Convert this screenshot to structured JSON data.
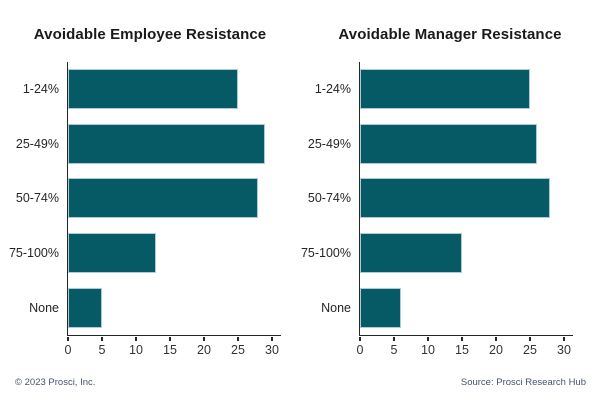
{
  "footer": {
    "copyright": "© 2023 Prosci, Inc.",
    "source": "Source: Prosci Research Hub"
  },
  "colors": {
    "bar": "#065a66",
    "bar_edge": "#adccd7",
    "axis": "#262626",
    "tick_label": "#333333",
    "footer_text": "#44546a"
  },
  "chart_data": [
    {
      "type": "bar",
      "orientation": "horizontal",
      "title": "Avoidable Employee Resistance",
      "categories": [
        "1-24%",
        "25-49%",
        "50-74%",
        "75-100%",
        "None"
      ],
      "values": [
        25,
        29,
        28,
        13,
        5
      ],
      "xlabel": "",
      "ylabel": "",
      "xlim": [
        0,
        30
      ],
      "xticks": [
        0,
        5,
        10,
        15,
        20,
        25,
        30
      ],
      "grid": false,
      "legend": false
    },
    {
      "type": "bar",
      "orientation": "horizontal",
      "title": "Avoidable Manager Resistance",
      "categories": [
        "1-24%",
        "25-49%",
        "50-74%",
        "75-100%",
        "None"
      ],
      "values": [
        25,
        26,
        28,
        15,
        6
      ],
      "xlabel": "",
      "ylabel": "",
      "xlim": [
        0,
        30
      ],
      "xticks": [
        0,
        5,
        10,
        15,
        20,
        25,
        30
      ],
      "grid": false,
      "legend": false
    }
  ]
}
